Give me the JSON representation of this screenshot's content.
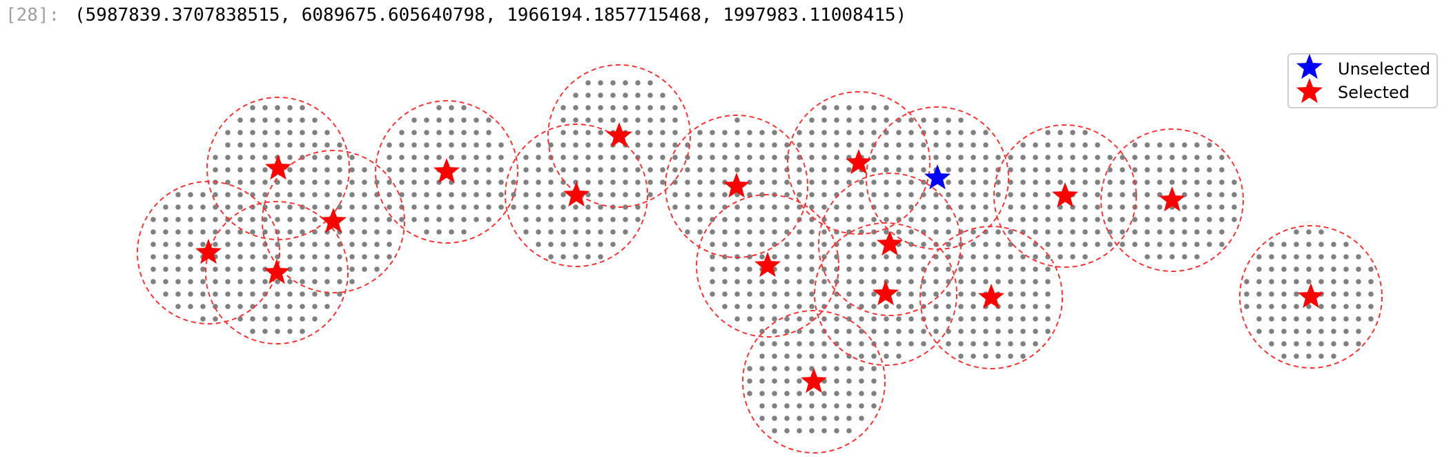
{
  "cell": {
    "prompt": "[28]:",
    "output": "(5987839.3707838515, 6089675.605640798, 1966194.1857715468, 1997983.11008415)"
  },
  "chart_data": {
    "type": "scatter",
    "grid": false,
    "axes_visible": false,
    "legend_position": "upper right",
    "colors": {
      "unselected": "#0000ff",
      "selected": "#ff0000",
      "circle": "#ff3030",
      "grid_points": "#808080"
    },
    "legend": [
      {
        "label": "Unselected",
        "color": "#0000ff",
        "marker": "star"
      },
      {
        "label": "Selected",
        "color": "#ff0000",
        "marker": "star"
      }
    ],
    "series": [
      {
        "name": "Unselected",
        "marker": "star",
        "color": "#0000ff",
        "points": [
          [
            1358,
            258
          ]
        ]
      },
      {
        "name": "Selected",
        "marker": "star",
        "color": "#ff0000",
        "points": [
          [
            302,
            366
          ],
          [
            403,
            244
          ],
          [
            483,
            321
          ],
          [
            401,
            395
          ],
          [
            647,
            249
          ],
          [
            835,
            283
          ],
          [
            897,
            197
          ],
          [
            1067,
            270
          ],
          [
            1112,
            385
          ],
          [
            1244,
            236
          ],
          [
            1289,
            354
          ],
          [
            1283,
            426
          ],
          [
            1436,
            431
          ],
          [
            1543,
            284
          ],
          [
            1698,
            290
          ],
          [
            1179,
            553
          ],
          [
            1899,
            430
          ]
        ]
      }
    ],
    "radius": 103
  }
}
